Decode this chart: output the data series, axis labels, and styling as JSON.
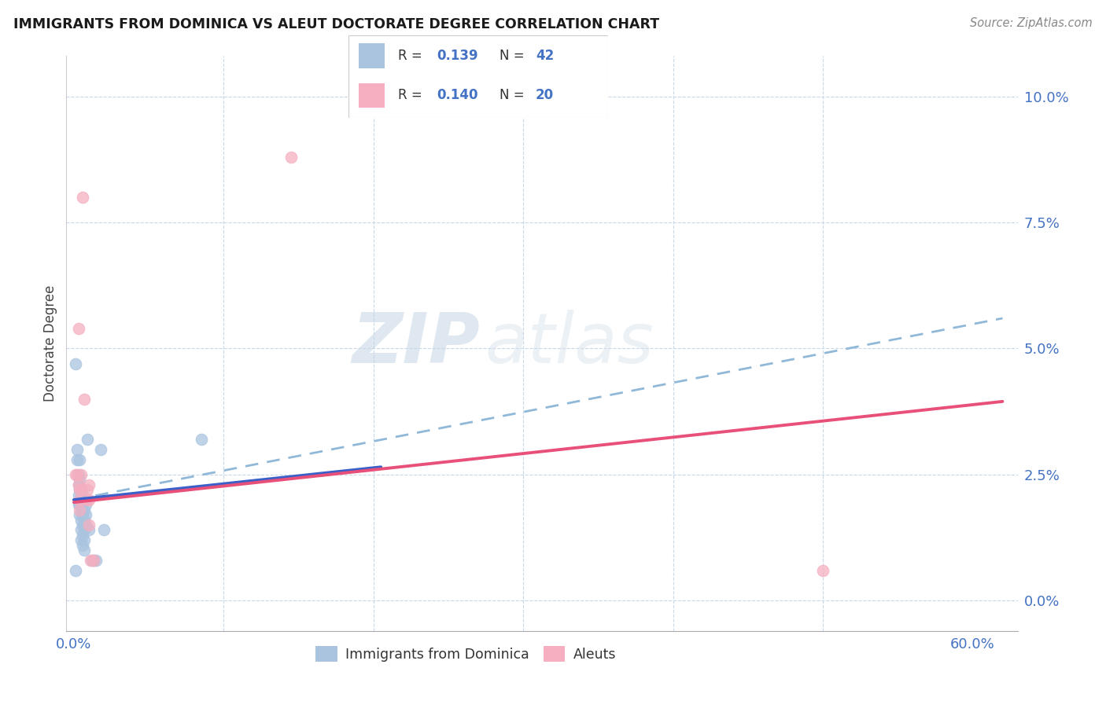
{
  "title": "IMMIGRANTS FROM DOMINICA VS ALEUT DOCTORATE DEGREE CORRELATION CHART",
  "source": "Source: ZipAtlas.com",
  "ylabel": "Doctorate Degree",
  "xlim": [
    -0.005,
    0.63
  ],
  "ylim": [
    -0.006,
    0.108
  ],
  "ytick_vals": [
    0.0,
    0.025,
    0.05,
    0.075,
    0.1
  ],
  "ytick_labels": [
    "0.0%",
    "2.5%",
    "5.0%",
    "7.5%",
    "10.0%"
  ],
  "xtick_vals": [
    0.0,
    0.6
  ],
  "xtick_labels": [
    "0.0%",
    "60.0%"
  ],
  "watermark_text": "ZIPatlas",
  "color_blue": "#aac4e0",
  "color_pink": "#f5afc0",
  "color_blue_line": "#3a5fc8",
  "color_pink_line": "#e8507a",
  "color_blue_dashed": "#90b8d8",
  "legend_r1_label": "R = ",
  "legend_r1_val": "0.139",
  "legend_n1_label": "N = ",
  "legend_n1_val": "42",
  "legend_r2_label": "R = ",
  "legend_r2_val": "0.140",
  "legend_n2_label": "N = ",
  "legend_n2_val": "20",
  "legend_label_blue": "Immigrants from Dominica",
  "legend_label_pink": "Aleuts",
  "blue_points": [
    [
      0.001,
      0.047
    ],
    [
      0.002,
      0.03
    ],
    [
      0.002,
      0.028
    ],
    [
      0.003,
      0.025
    ],
    [
      0.003,
      0.023
    ],
    [
      0.003,
      0.021
    ],
    [
      0.003,
      0.019
    ],
    [
      0.004,
      0.028
    ],
    [
      0.004,
      0.024
    ],
    [
      0.004,
      0.022
    ],
    [
      0.004,
      0.019
    ],
    [
      0.004,
      0.017
    ],
    [
      0.005,
      0.022
    ],
    [
      0.005,
      0.02
    ],
    [
      0.005,
      0.018
    ],
    [
      0.005,
      0.016
    ],
    [
      0.005,
      0.014
    ],
    [
      0.005,
      0.012
    ],
    [
      0.006,
      0.021
    ],
    [
      0.006,
      0.019
    ],
    [
      0.006,
      0.017
    ],
    [
      0.006,
      0.015
    ],
    [
      0.006,
      0.013
    ],
    [
      0.006,
      0.011
    ],
    [
      0.007,
      0.02
    ],
    [
      0.007,
      0.018
    ],
    [
      0.007,
      0.016
    ],
    [
      0.007,
      0.014
    ],
    [
      0.007,
      0.012
    ],
    [
      0.007,
      0.01
    ],
    [
      0.008,
      0.019
    ],
    [
      0.008,
      0.017
    ],
    [
      0.008,
      0.015
    ],
    [
      0.009,
      0.032
    ],
    [
      0.01,
      0.014
    ],
    [
      0.012,
      0.008
    ],
    [
      0.013,
      0.008
    ],
    [
      0.015,
      0.008
    ],
    [
      0.018,
      0.03
    ],
    [
      0.02,
      0.014
    ],
    [
      0.085,
      0.032
    ],
    [
      0.001,
      0.006
    ]
  ],
  "pink_points": [
    [
      0.001,
      0.025
    ],
    [
      0.002,
      0.025
    ],
    [
      0.003,
      0.023
    ],
    [
      0.003,
      0.054
    ],
    [
      0.004,
      0.022
    ],
    [
      0.004,
      0.02
    ],
    [
      0.004,
      0.018
    ],
    [
      0.005,
      0.025
    ],
    [
      0.005,
      0.022
    ],
    [
      0.006,
      0.08
    ],
    [
      0.007,
      0.04
    ],
    [
      0.009,
      0.022
    ],
    [
      0.009,
      0.02
    ],
    [
      0.01,
      0.023
    ],
    [
      0.01,
      0.02
    ],
    [
      0.01,
      0.015
    ],
    [
      0.011,
      0.008
    ],
    [
      0.013,
      0.008
    ],
    [
      0.145,
      0.088
    ],
    [
      0.5,
      0.006
    ]
  ],
  "marker_size": 110,
  "blue_line_x": [
    0.0,
    0.205
  ],
  "blue_line_y": [
    0.02,
    0.0265
  ],
  "pink_line_x": [
    0.0,
    0.62
  ],
  "pink_line_y": [
    0.0195,
    0.0395
  ],
  "dashed_line_x": [
    0.0,
    0.62
  ],
  "dashed_line_y": [
    0.02,
    0.056
  ]
}
